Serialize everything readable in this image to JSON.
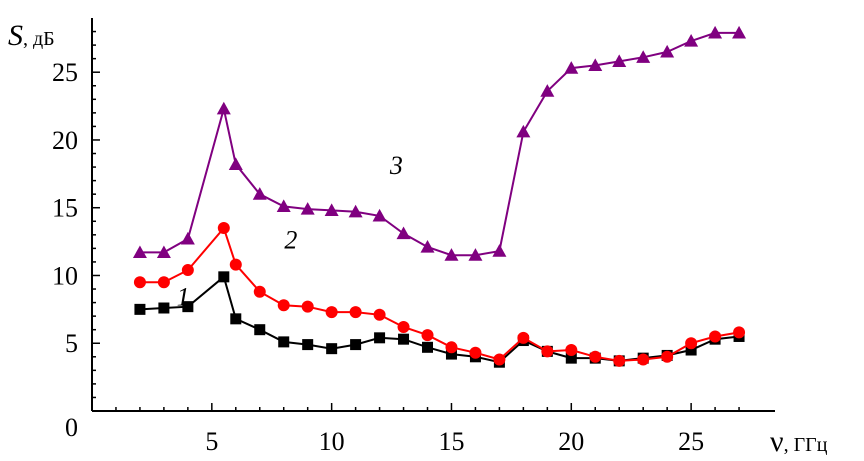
{
  "chart_data": {
    "type": "line",
    "xlabel_symbol": "ν",
    "xlabel_unit": ", ГГц",
    "ylabel_symbol": "S",
    "ylabel_unit": ", дБ",
    "xlim": [
      0,
      28.5
    ],
    "ylim": [
      0,
      29
    ],
    "x_ticks": [
      5,
      10,
      15,
      20,
      25
    ],
    "y_ticks": [
      5,
      10,
      15,
      20,
      25
    ],
    "origin_label": "0",
    "grid": false,
    "x": [
      2,
      3,
      4,
      5.5,
      6,
      7,
      8,
      9,
      10,
      11,
      12,
      13,
      14,
      15,
      16,
      17,
      18,
      19,
      20,
      21,
      22,
      23,
      24,
      25,
      26,
      27
    ],
    "series": [
      {
        "name": "1",
        "color": "#000000",
        "marker": "square",
        "values": [
          7.5,
          7.6,
          7.7,
          9.9,
          6.8,
          6.0,
          5.1,
          4.9,
          4.6,
          4.9,
          5.4,
          5.3,
          4.7,
          4.2,
          4.0,
          3.6,
          5.2,
          4.4,
          3.9,
          3.9,
          3.7,
          3.9,
          4.1,
          4.5,
          5.3,
          5.5
        ]
      },
      {
        "name": "2",
        "color": "#ff0000",
        "marker": "circle",
        "values": [
          9.5,
          9.5,
          10.4,
          13.5,
          10.8,
          8.8,
          7.8,
          7.7,
          7.3,
          7.3,
          7.1,
          6.2,
          5.6,
          4.7,
          4.3,
          3.8,
          5.4,
          4.4,
          4.5,
          4.0,
          3.7,
          3.8,
          4.0,
          5.0,
          5.5,
          5.8
        ]
      },
      {
        "name": "3",
        "color": "#800080",
        "marker": "triangle",
        "values": [
          11.7,
          11.7,
          12.7,
          22.3,
          18.2,
          16.0,
          15.1,
          14.9,
          14.8,
          14.7,
          14.4,
          13.1,
          12.1,
          11.5,
          11.5,
          11.8,
          20.6,
          23.6,
          25.3,
          25.5,
          25.8,
          26.1,
          26.5,
          27.3,
          27.9,
          27.9
        ]
      }
    ],
    "series_labels": [
      {
        "text": "1",
        "x": 3.8,
        "y": 7.8
      },
      {
        "text": "2",
        "x": 8.3,
        "y": 12.0
      },
      {
        "text": "3",
        "x": 12.7,
        "y": 17.5
      }
    ]
  }
}
